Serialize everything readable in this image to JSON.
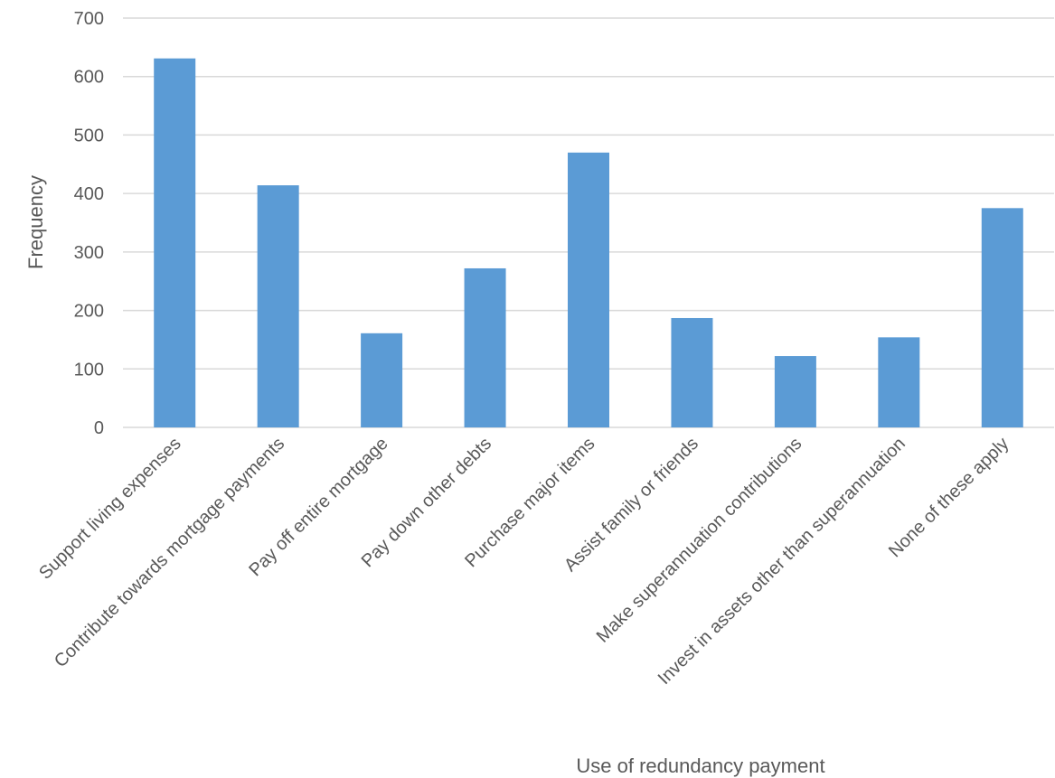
{
  "chart_data": {
    "type": "bar",
    "title": "",
    "xlabel": "Use of redundancy payment",
    "ylabel": "Frequency",
    "ylim": [
      0,
      700
    ],
    "yticks": [
      0,
      100,
      200,
      300,
      400,
      500,
      600,
      700
    ],
    "grid": true,
    "legend": "none",
    "categories": [
      "Support living expenses",
      "Contribute towards mortgage payments",
      "Pay off entire mortgage",
      "Pay down other debts",
      "Purchase major items",
      "Assist family or friends",
      "Make superannuation contributions",
      "Invest in assets other than superannuation",
      "None of these apply"
    ],
    "values": [
      631,
      414,
      161,
      272,
      470,
      187,
      122,
      154,
      375
    ],
    "colors": {
      "bar": "#5B9BD5",
      "grid": "#D9D9D9",
      "text": "#595959"
    }
  }
}
